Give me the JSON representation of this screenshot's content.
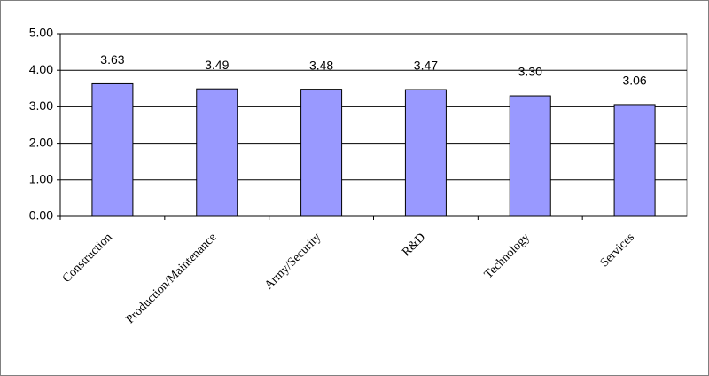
{
  "chart_data": {
    "type": "bar",
    "categories": [
      "Construction",
      "Production/Maintenance",
      "Army/Security",
      "R&D",
      "Technology",
      "Services"
    ],
    "values": [
      3.63,
      3.49,
      3.48,
      3.47,
      3.3,
      3.06
    ],
    "value_labels": [
      "3.63",
      "3.49",
      "3.48",
      "3.47",
      "3.30",
      "3.06"
    ],
    "color": "#9999ff",
    "ylim": [
      0,
      5
    ],
    "yticks": [
      {
        "value": 0,
        "label": "0.00"
      },
      {
        "value": 1,
        "label": "1.00"
      },
      {
        "value": 2,
        "label": "2.00"
      },
      {
        "value": 3,
        "label": "3.00"
      },
      {
        "value": 4,
        "label": "4.00"
      },
      {
        "value": 5,
        "label": "5.00"
      }
    ],
    "grid": true
  }
}
